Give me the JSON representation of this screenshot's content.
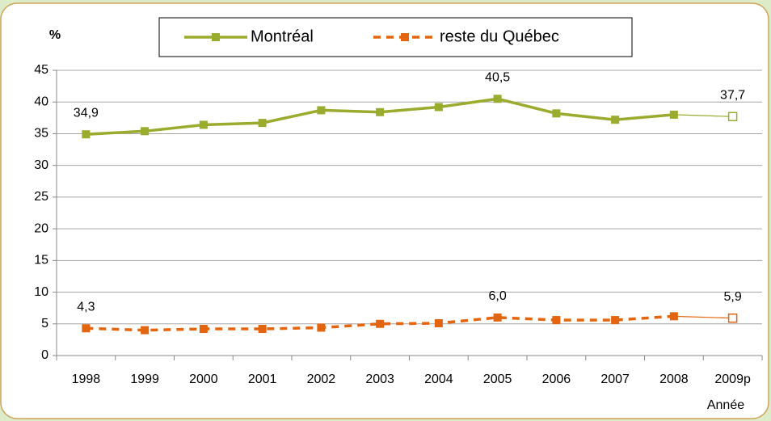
{
  "chart_data": {
    "type": "line",
    "y_label": "%",
    "x_label": "Année",
    "categories": [
      "1998",
      "1999",
      "2000",
      "2001",
      "2002",
      "2003",
      "2004",
      "2005",
      "2006",
      "2007",
      "2008",
      "2009p"
    ],
    "series": [
      {
        "name": "Montréal",
        "color": "#9aab2e",
        "dashed": false,
        "values": [
          34.9,
          35.4,
          36.4,
          36.7,
          38.7,
          38.4,
          39.2,
          40.5,
          38.2,
          37.2,
          38.0,
          37.7
        ],
        "value_labels": [
          "34,9",
          null,
          null,
          null,
          null,
          null,
          null,
          "40,5",
          null,
          null,
          null,
          "37,7"
        ]
      },
      {
        "name": "reste du Québec",
        "color": "#e4650f",
        "dashed": true,
        "values": [
          4.3,
          4.0,
          4.2,
          4.2,
          4.4,
          5.0,
          5.1,
          6.0,
          5.6,
          5.6,
          6.2,
          5.9
        ],
        "value_labels": [
          "4,3",
          null,
          null,
          null,
          null,
          null,
          null,
          "6,0",
          null,
          null,
          null,
          "5,9"
        ]
      }
    ],
    "hollow_last_point": true,
    "ylim": [
      0,
      45
    ],
    "yticks": [
      0,
      5,
      10,
      15,
      20,
      25,
      30,
      35,
      40,
      45
    ],
    "grid": true
  }
}
